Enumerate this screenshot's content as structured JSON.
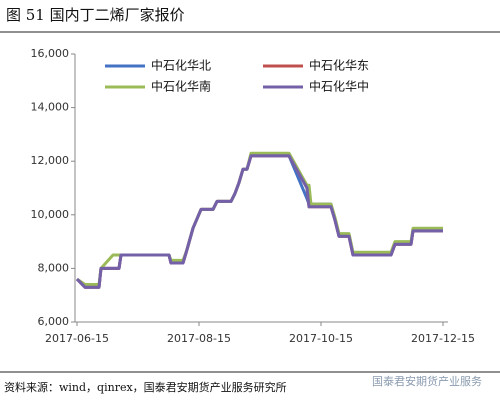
{
  "chart_data": {
    "type": "line",
    "title": "图 51 国内丁二烯厂家报价",
    "source": "资料来源：wind，qinrex，国泰君安期货产业服务研究所",
    "watermark": "国泰君安期货产业服务",
    "x": [
      "2017-06-15",
      "2017-06-19",
      "2017-06-26",
      "2017-06-27",
      "2017-07-03",
      "2017-07-06",
      "2017-07-07",
      "2017-07-31",
      "2017-08-01",
      "2017-08-07",
      "2017-08-09",
      "2017-08-12",
      "2017-08-16",
      "2017-08-22",
      "2017-08-24",
      "2017-08-31",
      "2017-09-02",
      "2017-09-04",
      "2017-09-06",
      "2017-09-08",
      "2017-09-10",
      "2017-09-29",
      "2017-10-08",
      "2017-10-09",
      "2017-10-10",
      "2017-10-20",
      "2017-10-22",
      "2017-10-24",
      "2017-10-29",
      "2017-10-31",
      "2017-11-19",
      "2017-11-21",
      "2017-11-29",
      "2017-11-30",
      "2017-12-15"
    ],
    "series": [
      {
        "name": "中石化华北",
        "color": "#4472c4",
        "values": [
          7600,
          7300,
          7300,
          8000,
          8000,
          8000,
          8500,
          8500,
          8200,
          8200,
          8700,
          9500,
          10200,
          10200,
          10500,
          10500,
          10800,
          11200,
          11700,
          11700,
          12200,
          12200,
          10600,
          10400,
          10400,
          10400,
          9800,
          9200,
          9200,
          8500,
          8500,
          8900,
          8900,
          9400,
          9400
        ]
      },
      {
        "name": "中石化华东",
        "color": "#c0504d",
        "values": [
          7600,
          7300,
          7300,
          8000,
          8000,
          8000,
          8500,
          8500,
          8200,
          8200,
          8700,
          9500,
          10200,
          10200,
          10500,
          10500,
          10800,
          11200,
          11700,
          11700,
          12200,
          12200,
          11000,
          10300,
          10300,
          10300,
          9800,
          9200,
          9200,
          8500,
          8500,
          8900,
          8900,
          9400,
          9400
        ]
      },
      {
        "name": "中石化华南",
        "color": "#9bbb59",
        "values": [
          7600,
          7400,
          7400,
          8000,
          8500,
          8500,
          8500,
          8500,
          8300,
          8300,
          8700,
          9500,
          10200,
          10200,
          10500,
          10500,
          10800,
          11200,
          11700,
          11700,
          12300,
          12300,
          11100,
          11100,
          10400,
          10400,
          9900,
          9300,
          9300,
          8600,
          8600,
          9000,
          9000,
          9500,
          9500
        ]
      },
      {
        "name": "中石化华中",
        "color": "#7460a8",
        "values": [
          7600,
          7300,
          7300,
          8000,
          8000,
          8000,
          8500,
          8500,
          8200,
          8200,
          8700,
          9500,
          10200,
          10200,
          10500,
          10500,
          10800,
          11200,
          11700,
          11700,
          12200,
          12200,
          11000,
          10300,
          10300,
          10300,
          9800,
          9200,
          9200,
          8500,
          8500,
          8900,
          8900,
          9400,
          9400
        ]
      }
    ],
    "xlim": [
      "2017-06-15",
      "2017-12-15"
    ],
    "xticks": [
      "2017-06-15",
      "2017-08-15",
      "2017-10-15",
      "2017-12-15"
    ],
    "ylim": [
      6000,
      16000
    ],
    "yticks": [
      {
        "value": 6000,
        "label": "6,000"
      },
      {
        "value": 8000,
        "label": "8,000"
      },
      {
        "value": 10000,
        "label": "10,000"
      },
      {
        "value": 12000,
        "label": "12,000"
      },
      {
        "value": 14000,
        "label": "14,000"
      },
      {
        "value": 16000,
        "label": "16,000"
      }
    ],
    "grid": false
  }
}
